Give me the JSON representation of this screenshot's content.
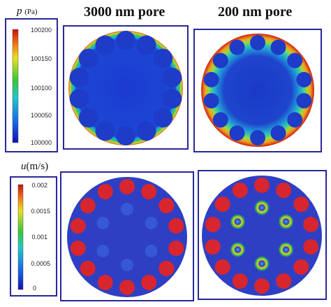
{
  "titles": {
    "left": "3000 nm pore",
    "right": "200 nm pore"
  },
  "pressure": {
    "symbol": "p",
    "unit": "(Pa)",
    "ticks": [
      "100200",
      "100150",
      "100100",
      "100050",
      "100000"
    ],
    "colormap": "rainbow"
  },
  "velocity": {
    "symbol": "u",
    "unit": "(m/s)",
    "ticks": [
      "0.002",
      "0.0015",
      "0.001",
      "0.0005",
      "0"
    ],
    "colormap": "rainbow"
  },
  "colors": {
    "frame": "#27279a",
    "background_field": "#2e3fc4",
    "particle": "#d8262e"
  }
}
